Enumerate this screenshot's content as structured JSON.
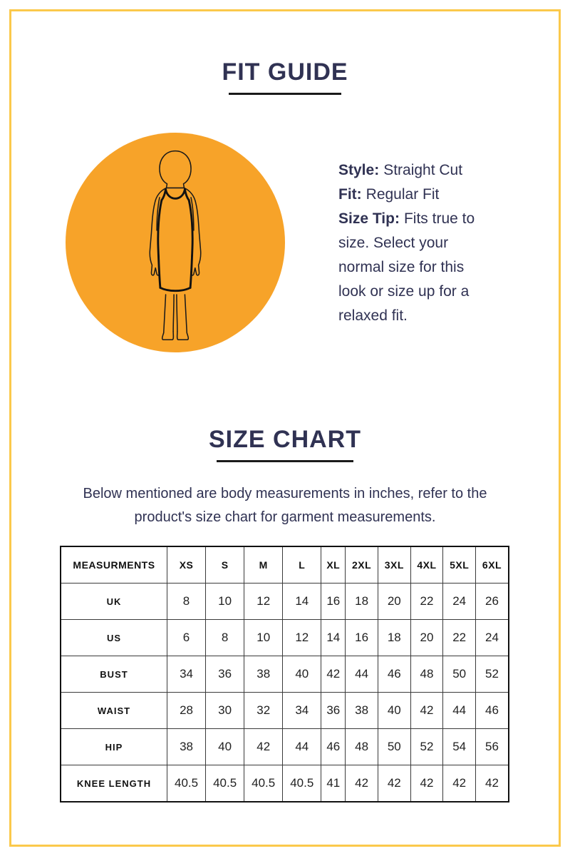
{
  "page": {
    "frame_color": "#FBC94B",
    "background": "#FFFFFF",
    "text_color": "#303253"
  },
  "fit_guide": {
    "title": "FIT GUIDE",
    "illustration": {
      "circle_color": "#F7A329",
      "figure": "woman-in-straight-cut-sleeveless-knee-length-dress"
    },
    "details": [
      {
        "label": "Style:",
        "value": "Straight Cut"
      },
      {
        "label": "Fit:",
        "value": "Regular Fit"
      },
      {
        "label": "Size Tip:",
        "value": "Fits true to size. Select your normal size for this look or size up for a relaxed fit."
      }
    ]
  },
  "size_chart": {
    "title": "SIZE CHART",
    "intro_line1": "Below mentioned are body measurements in inches, refer to the",
    "intro_line2": "product's size chart for garment measurements.",
    "table": {
      "header": [
        "MEASURMENTS",
        "XS",
        "S",
        "M",
        "L",
        "XL",
        "2XL",
        "3XL",
        "4XL",
        "5XL",
        "6XL"
      ],
      "rows": [
        {
          "label": "UK",
          "values": [
            "8",
            "10",
            "12",
            "14",
            "16",
            "18",
            "20",
            "22",
            "24",
            "26"
          ]
        },
        {
          "label": "US",
          "values": [
            "6",
            "8",
            "10",
            "12",
            "14",
            "16",
            "18",
            "20",
            "22",
            "24"
          ]
        },
        {
          "label": "BUST",
          "values": [
            "34",
            "36",
            "38",
            "40",
            "42",
            "44",
            "46",
            "48",
            "50",
            "52"
          ]
        },
        {
          "label": "WAIST",
          "values": [
            "28",
            "30",
            "32",
            "34",
            "36",
            "38",
            "40",
            "42",
            "44",
            "46"
          ]
        },
        {
          "label": "HIP",
          "values": [
            "38",
            "40",
            "42",
            "44",
            "46",
            "48",
            "50",
            "52",
            "54",
            "56"
          ]
        },
        {
          "label": "KNEE LENGTH",
          "values": [
            "40.5",
            "40.5",
            "40.5",
            "40.5",
            "41",
            "42",
            "42",
            "42",
            "42",
            "42"
          ]
        }
      ]
    }
  }
}
